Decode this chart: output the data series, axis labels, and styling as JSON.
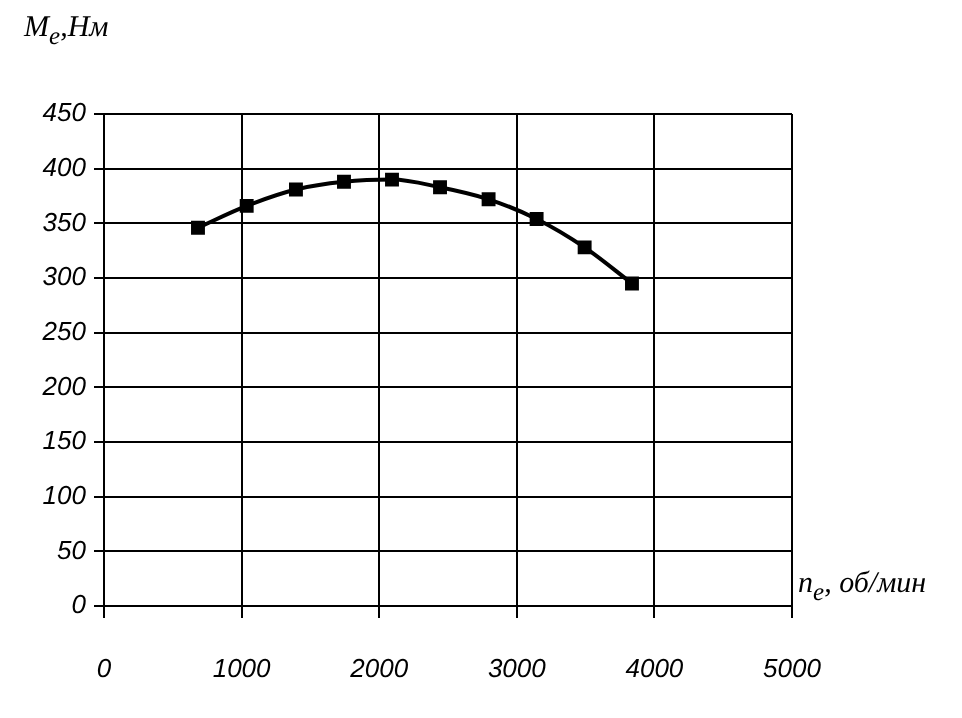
{
  "chart_data": {
    "type": "line",
    "xlabel": "n$_{e}$, об/мин",
    "ylabel": "M$_{e}$,Нм",
    "x": [
      683,
      1037,
      1395,
      1744,
      2093,
      2442,
      2795,
      3144,
      3493,
      3837
    ],
    "series": [
      {
        "color": "#000000",
        "values": [
          346,
          366,
          381,
          388,
          390,
          383,
          372,
          354,
          328,
          295
        ]
      }
    ],
    "xlim": [
      0,
      5000
    ],
    "xticks": [
      0,
      1000,
      2000,
      3000,
      4000,
      5000
    ],
    "ylim": [
      0,
      450
    ],
    "yticks": [
      0,
      50,
      100,
      150,
      200,
      250,
      300,
      350,
      400,
      450
    ],
    "grid": true,
    "legend": false,
    "marker": "square",
    "line_style": "solid"
  }
}
